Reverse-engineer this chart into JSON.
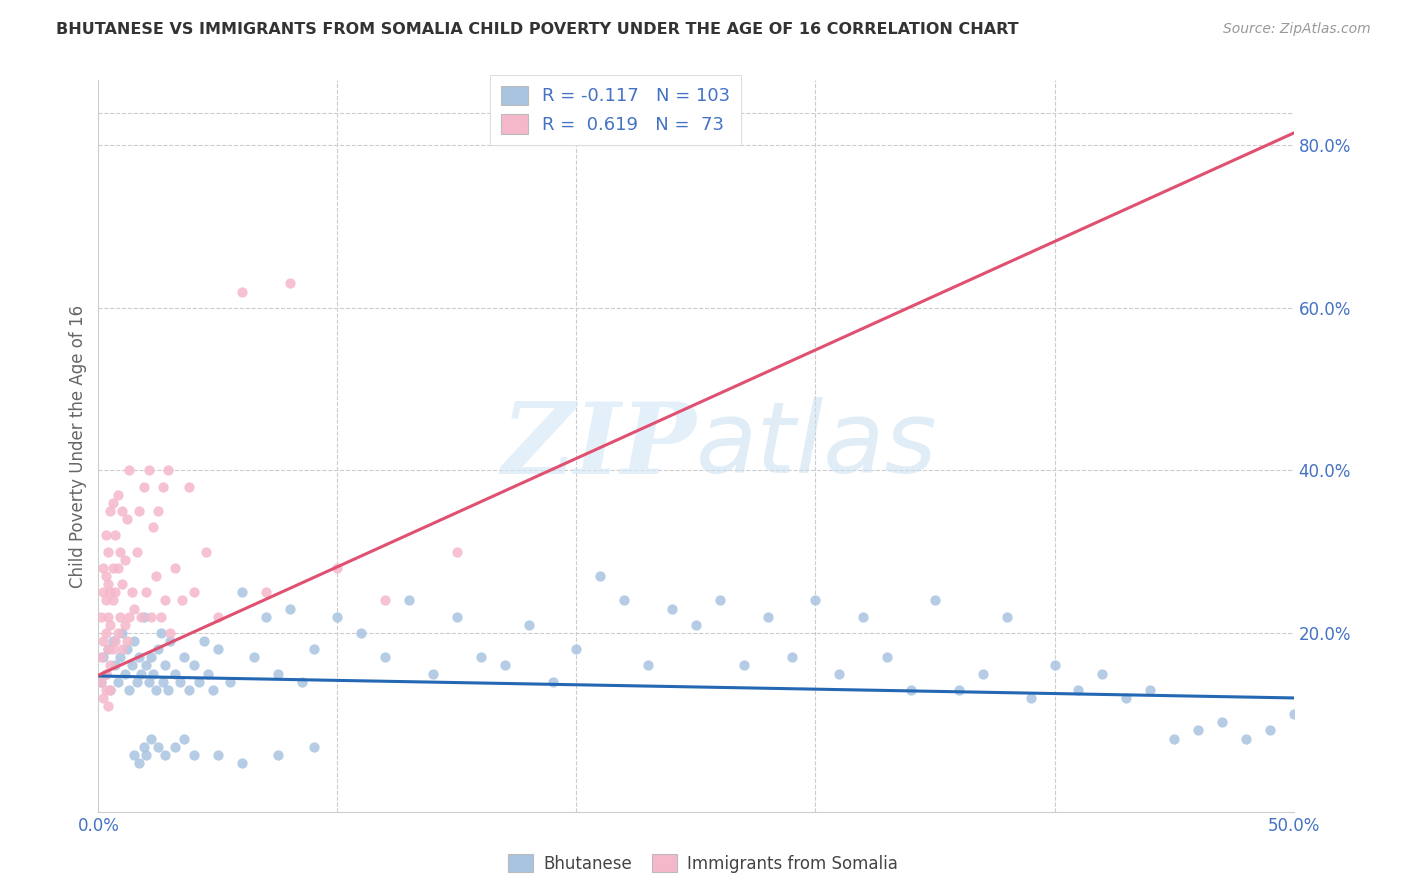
{
  "title": "BHUTANESE VS IMMIGRANTS FROM SOMALIA CHILD POVERTY UNDER THE AGE OF 16 CORRELATION CHART",
  "source": "Source: ZipAtlas.com",
  "ylabel": "Child Poverty Under the Age of 16",
  "xlim": [
    0.0,
    0.5
  ],
  "ylim": [
    -0.02,
    0.88
  ],
  "bhutanese_color": "#a8c4e0",
  "somalia_color": "#f5b8cb",
  "trendline_bhutanese_color": "#2468b4",
  "trendline_somalia_color": "#e05070",
  "R_bhutanese": -0.117,
  "N_bhutanese": 103,
  "R_somalia": 0.619,
  "N_somalia": 73,
  "legend_label_bhutanese": "Bhutanese",
  "legend_label_somalia": "Immigrants from Somalia",
  "watermark_zip": "ZIP",
  "watermark_atlas": "atlas",
  "trendline_b_x0": 0.0,
  "trendline_b_x1": 0.5,
  "trendline_b_y0": 0.147,
  "trendline_b_y1": 0.12,
  "trendline_s_x0": 0.0,
  "trendline_s_x1": 0.5,
  "trendline_s_y0": 0.148,
  "trendline_s_y1": 0.815,
  "bhutanese_x": [
    0.001,
    0.002,
    0.003,
    0.004,
    0.005,
    0.006,
    0.007,
    0.008,
    0.009,
    0.01,
    0.011,
    0.012,
    0.013,
    0.014,
    0.015,
    0.016,
    0.017,
    0.018,
    0.019,
    0.02,
    0.021,
    0.022,
    0.023,
    0.024,
    0.025,
    0.026,
    0.027,
    0.028,
    0.029,
    0.03,
    0.032,
    0.034,
    0.036,
    0.038,
    0.04,
    0.042,
    0.044,
    0.046,
    0.048,
    0.05,
    0.055,
    0.06,
    0.065,
    0.07,
    0.075,
    0.08,
    0.085,
    0.09,
    0.1,
    0.11,
    0.12,
    0.13,
    0.14,
    0.15,
    0.16,
    0.17,
    0.18,
    0.19,
    0.2,
    0.21,
    0.22,
    0.23,
    0.24,
    0.25,
    0.26,
    0.27,
    0.28,
    0.29,
    0.3,
    0.31,
    0.32,
    0.33,
    0.34,
    0.35,
    0.36,
    0.37,
    0.38,
    0.39,
    0.4,
    0.41,
    0.42,
    0.43,
    0.44,
    0.45,
    0.46,
    0.47,
    0.48,
    0.49,
    0.5,
    0.015,
    0.017,
    0.019,
    0.02,
    0.022,
    0.025,
    0.028,
    0.032,
    0.036,
    0.04,
    0.05,
    0.06,
    0.075,
    0.09
  ],
  "bhutanese_y": [
    0.14,
    0.17,
    0.15,
    0.18,
    0.13,
    0.19,
    0.16,
    0.14,
    0.17,
    0.2,
    0.15,
    0.18,
    0.13,
    0.16,
    0.19,
    0.14,
    0.17,
    0.15,
    0.22,
    0.16,
    0.14,
    0.17,
    0.15,
    0.13,
    0.18,
    0.2,
    0.14,
    0.16,
    0.13,
    0.19,
    0.15,
    0.14,
    0.17,
    0.13,
    0.16,
    0.14,
    0.19,
    0.15,
    0.13,
    0.18,
    0.14,
    0.25,
    0.17,
    0.22,
    0.15,
    0.23,
    0.14,
    0.18,
    0.22,
    0.2,
    0.17,
    0.24,
    0.15,
    0.22,
    0.17,
    0.16,
    0.21,
    0.14,
    0.18,
    0.27,
    0.24,
    0.16,
    0.23,
    0.21,
    0.24,
    0.16,
    0.22,
    0.17,
    0.24,
    0.15,
    0.22,
    0.17,
    0.13,
    0.24,
    0.13,
    0.15,
    0.22,
    0.12,
    0.16,
    0.13,
    0.15,
    0.12,
    0.13,
    0.07,
    0.08,
    0.09,
    0.07,
    0.08,
    0.1,
    0.05,
    0.04,
    0.06,
    0.05,
    0.07,
    0.06,
    0.05,
    0.06,
    0.07,
    0.05,
    0.05,
    0.04,
    0.05,
    0.06
  ],
  "somalia_x": [
    0.001,
    0.001,
    0.002,
    0.002,
    0.002,
    0.003,
    0.003,
    0.003,
    0.003,
    0.003,
    0.004,
    0.004,
    0.004,
    0.004,
    0.005,
    0.005,
    0.005,
    0.005,
    0.006,
    0.006,
    0.006,
    0.006,
    0.007,
    0.007,
    0.007,
    0.008,
    0.008,
    0.008,
    0.009,
    0.009,
    0.01,
    0.01,
    0.01,
    0.011,
    0.011,
    0.012,
    0.012,
    0.013,
    0.013,
    0.014,
    0.015,
    0.016,
    0.017,
    0.018,
    0.019,
    0.02,
    0.021,
    0.022,
    0.023,
    0.024,
    0.025,
    0.026,
    0.027,
    0.028,
    0.029,
    0.03,
    0.032,
    0.035,
    0.038,
    0.04,
    0.045,
    0.05,
    0.06,
    0.07,
    0.08,
    0.1,
    0.12,
    0.15,
    0.001,
    0.002,
    0.003,
    0.004,
    0.005
  ],
  "somalia_y": [
    0.17,
    0.22,
    0.19,
    0.25,
    0.28,
    0.15,
    0.2,
    0.24,
    0.27,
    0.32,
    0.18,
    0.22,
    0.26,
    0.3,
    0.16,
    0.21,
    0.25,
    0.35,
    0.18,
    0.24,
    0.28,
    0.36,
    0.19,
    0.25,
    0.32,
    0.2,
    0.28,
    0.37,
    0.22,
    0.3,
    0.18,
    0.26,
    0.35,
    0.21,
    0.29,
    0.19,
    0.34,
    0.22,
    0.4,
    0.25,
    0.23,
    0.3,
    0.35,
    0.22,
    0.38,
    0.25,
    0.4,
    0.22,
    0.33,
    0.27,
    0.35,
    0.22,
    0.38,
    0.24,
    0.4,
    0.2,
    0.28,
    0.24,
    0.38,
    0.25,
    0.3,
    0.22,
    0.62,
    0.25,
    0.63,
    0.28,
    0.24,
    0.3,
    0.14,
    0.12,
    0.13,
    0.11,
    0.13
  ]
}
